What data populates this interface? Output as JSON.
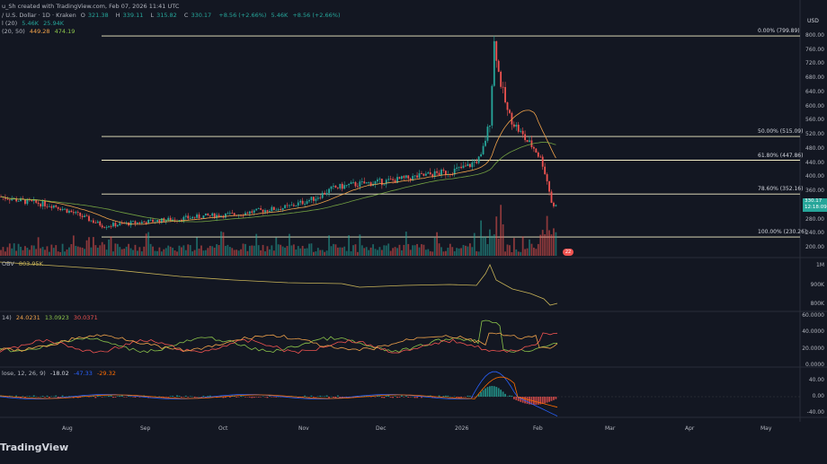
{
  "header": {
    "credit": "u_Sh created with TradingView.com, Feb 07, 2026 11:41 UTC",
    "symbol_line": "/ U.S. Dollar · 1D · Kraken",
    "o_label": "O",
    "o_value": "321.38",
    "h_label": "H",
    "h_value": "339.11",
    "l_label": "L",
    "l_value": "315.82",
    "c_label": "C",
    "c_value": "330.17",
    "chg_value": "+8.56 (+2.66%)",
    "vol_line_value": "5.46K",
    "vol_line_chg": "+8.56 (+2.66%)",
    "vol_label": "l (20)",
    "vol_a": "5.46K",
    "vol_b": "25.94K",
    "ma_label": "(20, 50)",
    "ma_a": "449.28",
    "ma_b": "474.19"
  },
  "currency": "USD",
  "price_axis": [
    "800.00",
    "760.00",
    "720.00",
    "680.00",
    "640.00",
    "600.00",
    "560.00",
    "520.00",
    "480.00",
    "440.00",
    "400.00",
    "360.00",
    "320.00",
    "280.00",
    "240.00",
    "200.00"
  ],
  "current_price": {
    "price": "330.17",
    "countdown": "12:18:09"
  },
  "fib_levels": [
    {
      "label": "0.00% (799.89)",
      "price": 799.89
    },
    {
      "label": "50.00% (515.09)",
      "price": 515.09
    },
    {
      "label": "61.80% (447.86)",
      "price": 447.86
    },
    {
      "label": "78.60% (352.16)",
      "price": 352.16
    },
    {
      "label": "100.00% (230.26)",
      "price": 230.26
    }
  ],
  "obv": {
    "label": "OBV",
    "value": "803.95K",
    "axis": [
      "1M",
      "900K",
      "800K"
    ]
  },
  "dmi": {
    "label": "14)",
    "a": "24.0231",
    "b": "13.0923",
    "c": "30.0371",
    "axis": [
      "60.0000",
      "40.0000",
      "20.0000",
      "0.0000"
    ]
  },
  "macd": {
    "label": "lose, 12, 26, 9)",
    "a": "-18.02",
    "b": "-47.33",
    "c": "-29.32",
    "axis": [
      "40.00",
      "0.00",
      "-40.00"
    ]
  },
  "time_axis": [
    "Aug",
    "Sep",
    "Oct",
    "Nov",
    "Dec",
    "2026",
    "Feb",
    "Mar",
    "Apr",
    "May"
  ],
  "watermark": "TradingView",
  "badge": "22",
  "colors": {
    "bg": "#131722",
    "up": "#26a69a",
    "down": "#ef5350",
    "fib": "#f5f0c8",
    "ma_fast": "#f0a24a",
    "ma_slow": "#f0a24a",
    "obv": "#c9b458",
    "dmi_plus": "#8bc34a",
    "dmi_minus": "#ef5350",
    "adx": "#f0a24a",
    "macd": "#2962ff",
    "signal": "#ff6d00"
  }
}
